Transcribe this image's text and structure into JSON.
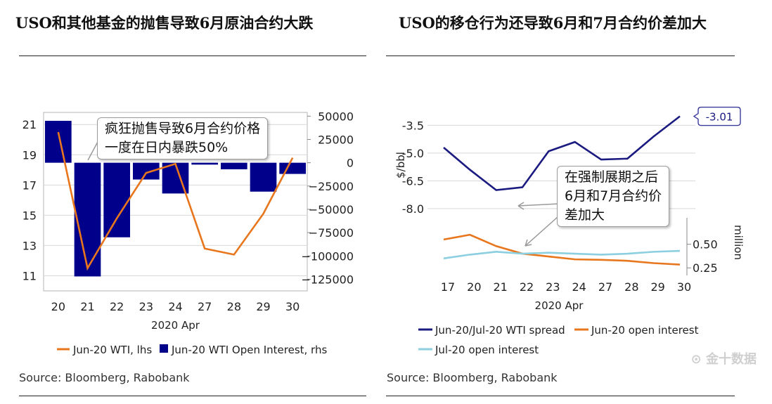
{
  "left": {
    "title": "USO和其他基金的抛售导致6月原油合约大跌",
    "source": "Source: Bloomberg, Rabobank",
    "callout": [
      "疯狂抛售导致6月合约价格",
      "一度在日内暴跌50%"
    ],
    "chart_data": {
      "type": "bar+line",
      "categories": [
        "20",
        "21",
        "22",
        "23",
        "24",
        "27",
        "28",
        "29",
        "30"
      ],
      "xlabel": "2020 Apr",
      "series": [
        {
          "name": "Jun-20 WTI, lhs",
          "type": "line",
          "axis": "left",
          "color": "#E8761D",
          "values": [
            20.5,
            11.5,
            14.8,
            17.8,
            18.4,
            12.8,
            12.4,
            15.1,
            18.8
          ]
        },
        {
          "name": "Jun-20 WTI Open Interest, rhs",
          "type": "bar",
          "axis": "right",
          "color": "#00008B",
          "values": [
            45000,
            -122000,
            -80000,
            -18000,
            -33000,
            -2000,
            -7000,
            -31000,
            -12000
          ]
        }
      ],
      "y_left": {
        "min": 10,
        "max": 21.8,
        "ticks": [
          11,
          13,
          15,
          17,
          19,
          21
        ]
      },
      "y_right": {
        "min": -137500,
        "max": 54000,
        "ticks": [
          50000,
          25000,
          0,
          -25000,
          -50000,
          -75000,
          -100000,
          -125000
        ],
        "tick_labels": [
          "50000",
          "25000",
          "0",
          "−25000",
          "−50000",
          "−75000",
          "−100000",
          "−125000"
        ]
      }
    }
  },
  "right": {
    "title": "USO的移仓行为还导致6月和7月合约价差加大",
    "source": "Source: Bloomberg, Rabobank",
    "callout": [
      "在强制展期之后",
      "6月和7月合约价",
      "差加大"
    ],
    "end_label": "-3.01",
    "chart_data": [
      {
        "type": "line",
        "categories": [
          "17",
          "20",
          "21",
          "22",
          "23",
          "24",
          "27",
          "28",
          "29",
          "30"
        ],
        "ylabel": "$/bbl",
        "ylim": [
          -8.5,
          -2.8
        ],
        "ticks": [
          -3.5,
          -5.0,
          -6.5,
          -8.0
        ],
        "tick_labels": [
          "-3.5",
          "-5.0",
          "-6.5",
          "-8.0"
        ],
        "series": [
          {
            "name": "Jun-20/Jul-20 WTI spread",
            "color": "#1A1A80",
            "values": [
              -4.7,
              -5.9,
              -7.0,
              -6.85,
              -4.9,
              -4.4,
              -5.35,
              -5.3,
              -4.1,
              -3.01
            ]
          }
        ]
      },
      {
        "type": "line",
        "categories": [
          "17",
          "20",
          "21",
          "22",
          "23",
          "24",
          "27",
          "28",
          "29",
          "30"
        ],
        "xlabel": "2020 Apr",
        "ylabel": "million",
        "ylim": [
          0.17,
          0.72
        ],
        "ticks": [
          0.5,
          0.25
        ],
        "tick_labels": [
          "0.50",
          "0.25"
        ],
        "series": [
          {
            "name": "Jun-20 open interest",
            "color": "#E8761D",
            "values": [
              0.55,
              0.6,
              0.48,
              0.4,
              0.37,
              0.34,
              0.335,
              0.325,
              0.3,
              0.285
            ]
          },
          {
            "name": "Jul-20 open interest",
            "color": "#8CCFE0",
            "values": [
              0.35,
              0.39,
              0.42,
              0.4,
              0.41,
              0.4,
              0.39,
              0.4,
              0.42,
              0.43
            ]
          }
        ]
      }
    ]
  },
  "watermark": "金十数据"
}
